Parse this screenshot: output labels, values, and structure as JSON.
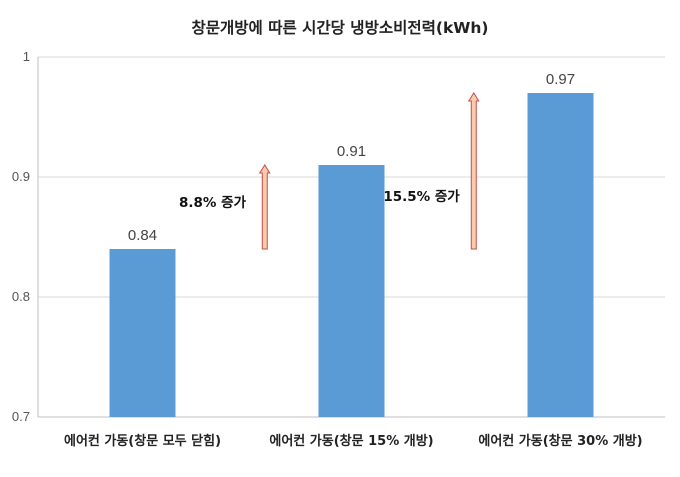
{
  "chart_data": {
    "type": "bar",
    "title": "창문개방에 따른 시간당 냉방소비전력(kWh)",
    "categories": [
      "에어컨 가동(창문 모두 닫힘)",
      "에어컨 가동(창문 15% 개방)",
      "에어컨 가동(창문 30% 개방)"
    ],
    "values": [
      0.84,
      0.91,
      0.97
    ],
    "data_labels": [
      "0.84",
      "0.91",
      "0.97"
    ],
    "ylim": [
      0.7,
      1.0
    ],
    "yticks": [
      0.7,
      0.8,
      0.9,
      1.0
    ],
    "ytick_labels": [
      "0.7",
      "0.8",
      "0.9",
      "1"
    ],
    "grid": true,
    "legend": "none",
    "bar_color": "#5b9bd5",
    "annotations": [
      {
        "text": "8.8% 증가",
        "from_value": 0.84,
        "to_value": 0.91
      },
      {
        "text": "15.5% 증가",
        "from_value": 0.84,
        "to_value": 0.97
      }
    ],
    "arrow_color": "#f8cbad"
  }
}
